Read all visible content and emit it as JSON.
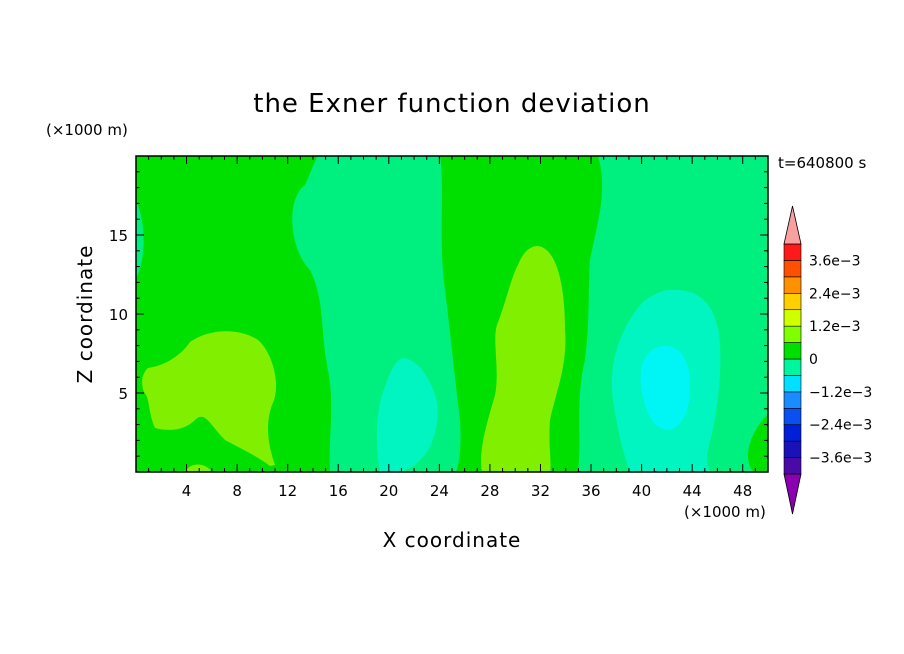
{
  "chart_data": {
    "type": "heatmap",
    "title": "the Exner function deviation",
    "xlabel": "X coordinate",
    "ylabel": "Z coordinate",
    "x_unit": "(×1000 m)",
    "y_unit": "(×1000 m)",
    "time_label": "t=640800 s",
    "xlim": [
      0,
      50
    ],
    "ylim": [
      0,
      20
    ],
    "x_ticks": [
      4,
      8,
      12,
      16,
      20,
      24,
      28,
      32,
      36,
      40,
      44,
      48
    ],
    "y_ticks": [
      5,
      10,
      15
    ],
    "colorbar": {
      "levels": [
        -0.0042,
        -0.0036,
        -0.003,
        -0.0024,
        -0.0018,
        -0.0012,
        -0.0006,
        0,
        0.0006,
        0.0012,
        0.0018,
        0.0024,
        0.003,
        0.0036,
        0.0042
      ],
      "colors": [
        "#8a00b0",
        "#4a0aa8",
        "#1a12b8",
        "#0020d8",
        "#0a50f0",
        "#1a8cff",
        "#00e0ff",
        "#00f5a0",
        "#00e000",
        "#80ff00",
        "#d0ff00",
        "#ffd000",
        "#ff9000",
        "#ff5000",
        "#ff1a1a",
        "#f8a0a0"
      ],
      "tick_labels": [
        "3.6e-3",
        "2.4e-3",
        "1.2e-3",
        "0",
        "-1.2e-3",
        "-2.4e-3",
        "-3.6e-3"
      ]
    },
    "regions": [
      {
        "x_range": [
          0,
          14
        ],
        "z_range": [
          0,
          20
        ],
        "value": 0.0003
      },
      {
        "x_range": [
          14,
          26
        ],
        "z_range": [
          0,
          20
        ],
        "value": -0.0003
      },
      {
        "x_range": [
          26,
          36
        ],
        "z_range": [
          0,
          20
        ],
        "value": 0.0003
      },
      {
        "x_range": [
          36,
          49
        ],
        "z_range": [
          0,
          20
        ],
        "value": -0.0003
      },
      {
        "x_range": [
          49,
          50
        ],
        "z_range": [
          0,
          20
        ],
        "value": 0.0003
      },
      {
        "x_range": [
          1,
          11
        ],
        "z_range": [
          1,
          9
        ],
        "value": 0.0009
      },
      {
        "x_range": [
          19,
          24
        ],
        "z_range": [
          0,
          7
        ],
        "value": -0.0009
      },
      {
        "x_range": [
          27,
          34
        ],
        "z_range": [
          1,
          14
        ],
        "value": 0.0009
      },
      {
        "x_range": [
          38,
          46
        ],
        "z_range": [
          1,
          11
        ],
        "value": -0.0009
      },
      {
        "x_range": [
          40,
          44
        ],
        "z_range": [
          3,
          8
        ],
        "value": -0.0015
      }
    ]
  }
}
